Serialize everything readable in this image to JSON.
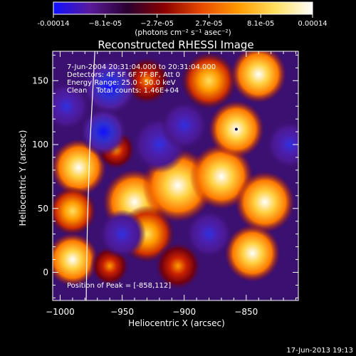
{
  "colorbar": {
    "tick_labels": [
      "-0.00014",
      "−8.1e-05",
      "−2.7e-05",
      "2.7e-05",
      "8.1e-05",
      "0.00014"
    ],
    "unit_label": "(photons cm⁻² s⁻¹ asec⁻²)",
    "colors": [
      "#1010ff",
      "#5a1a9a",
      "#2a0030",
      "#8a0000",
      "#e84a00",
      "#ff9a00",
      "#ffe060",
      "#ffffff"
    ]
  },
  "chart_data": {
    "type": "heatmap",
    "title": "Reconstructed RHESSI Image",
    "xlabel": "Heliocentric X (arcsec)",
    "ylabel": "Heliocentric Y (arcsec)",
    "xlim": [
      -1006,
      -808
    ],
    "ylim": [
      -22,
      173
    ],
    "x_ticks": [
      -1000,
      -950,
      -900,
      -850
    ],
    "x_tick_labels": [
      "−1000",
      "−950",
      "−900",
      "−850"
    ],
    "y_ticks": [
      0,
      50,
      100,
      150
    ],
    "y_tick_labels": [
      "0",
      "50",
      "100",
      "150"
    ],
    "color_range": [
      -0.00014,
      0.00014
    ],
    "annotations": [
      "7-Jun-2004 20:31:04.000 to 20:31:04.000",
      "Detectors: 4F 5F 6F 7F 8F, Att 0",
      "Energy Range: 25.0 - 50.0 keV",
      "Clean    Total counts: 1.46E+04"
    ],
    "peak_label": "Position of Peak = [-858,112]",
    "peak": [
      -858,
      112
    ],
    "limb_curve": [
      [
        -972,
        173
      ],
      [
        -976,
        100
      ],
      [
        -978,
        40
      ],
      [
        -979,
        -22
      ]
    ],
    "blobs": [
      {
        "x": -985,
        "y": 82,
        "v": 1.0,
        "r": 14
      },
      {
        "x": -990,
        "y": 48,
        "v": 0.8,
        "r": 12
      },
      {
        "x": -955,
        "y": 96,
        "v": 0.5,
        "r": 10
      },
      {
        "x": -940,
        "y": 55,
        "v": 0.9,
        "r": 16
      },
      {
        "x": -930,
        "y": 30,
        "v": 0.85,
        "r": 14
      },
      {
        "x": -905,
        "y": 68,
        "v": 1.0,
        "r": 18
      },
      {
        "x": -870,
        "y": 75,
        "v": 1.0,
        "r": 16
      },
      {
        "x": -858,
        "y": 112,
        "v": 1.0,
        "r": 14
      },
      {
        "x": -835,
        "y": 55,
        "v": 1.0,
        "r": 15
      },
      {
        "x": -845,
        "y": 15,
        "v": 0.9,
        "r": 14
      },
      {
        "x": -905,
        "y": 5,
        "v": 0.6,
        "r": 12
      },
      {
        "x": -880,
        "y": 150,
        "v": 0.8,
        "r": 14
      },
      {
        "x": -840,
        "y": 155,
        "v": 0.9,
        "r": 14
      },
      {
        "x": -930,
        "y": 150,
        "v": 0.6,
        "r": 12
      },
      {
        "x": -990,
        "y": 10,
        "v": 0.9,
        "r": 13
      },
      {
        "x": -960,
        "y": 5,
        "v": 0.6,
        "r": 10
      },
      {
        "x": -960,
        "y": 145,
        "v": -0.9,
        "r": 14
      },
      {
        "x": -965,
        "y": 110,
        "v": -0.8,
        "r": 12
      },
      {
        "x": -920,
        "y": 100,
        "v": -0.6,
        "r": 14
      },
      {
        "x": -995,
        "y": 130,
        "v": -0.5,
        "r": 12
      },
      {
        "x": -880,
        "y": 30,
        "v": -0.5,
        "r": 12
      },
      {
        "x": -900,
        "y": 115,
        "v": -0.4,
        "r": 12
      },
      {
        "x": -815,
        "y": 100,
        "v": -0.6,
        "r": 12
      },
      {
        "x": -950,
        "y": 30,
        "v": -0.4,
        "r": 12
      }
    ]
  },
  "footer": {
    "timestamp": "17-Jun-2013 19:13"
  }
}
